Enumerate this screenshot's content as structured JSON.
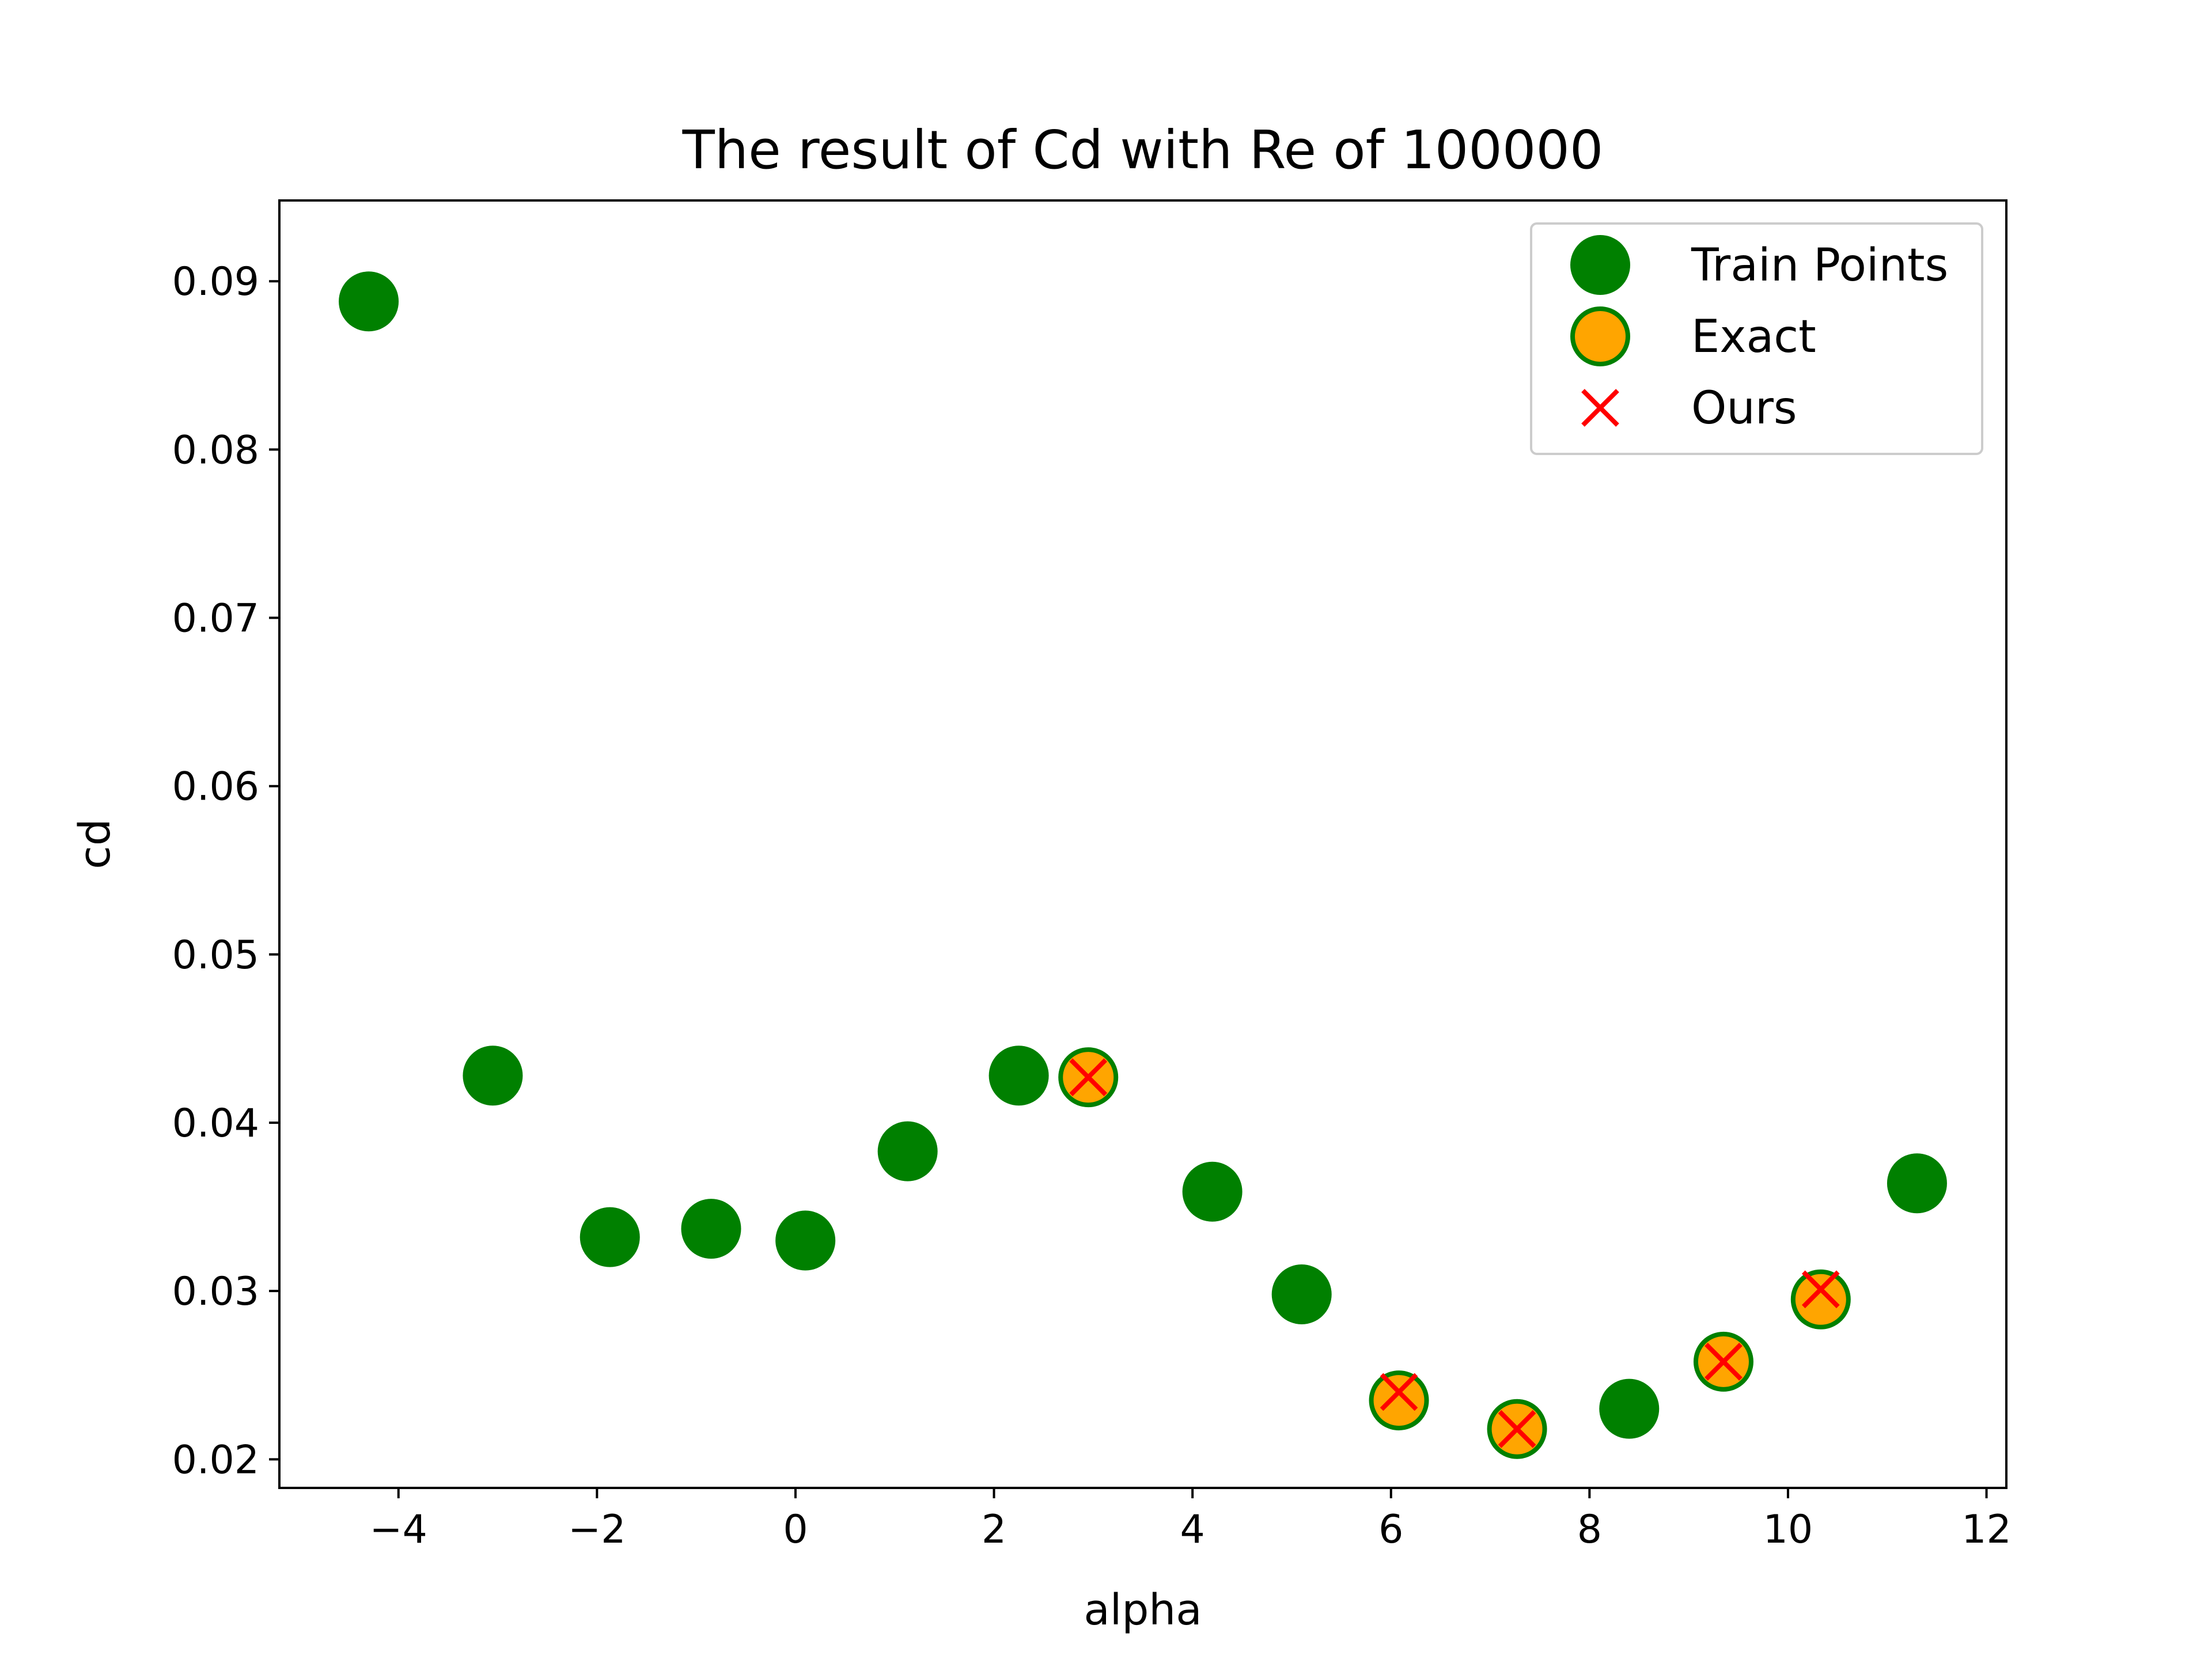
{
  "chart_data": {
    "type": "scatter",
    "title": "The result of Cd with Re of 100000",
    "xlabel": "alpha",
    "ylabel": "cd",
    "xlim": [
      -5.2,
      12.2
    ],
    "ylim": [
      0.0183,
      0.0948
    ],
    "xticks": [
      -4,
      -2,
      0,
      2,
      4,
      6,
      8,
      10,
      12
    ],
    "xtick_labels": [
      "−4",
      "−2",
      "0",
      "2",
      "4",
      "6",
      "8",
      "10",
      "12"
    ],
    "yticks": [
      0.02,
      0.03,
      0.04,
      0.05,
      0.06,
      0.07,
      0.08,
      0.09
    ],
    "ytick_labels": [
      "0.02",
      "0.03",
      "0.04",
      "0.05",
      "0.06",
      "0.07",
      "0.08",
      "0.09"
    ],
    "grid": false,
    "legend_position": "top-right",
    "series": [
      {
        "name": "Train Points",
        "marker": "circle",
        "color": "#008000",
        "x": [
          -4.3,
          -3.05,
          -1.87,
          -0.85,
          0.1,
          1.13,
          2.25,
          4.2,
          5.1,
          8.4,
          11.3
        ],
        "y": [
          0.0888,
          0.0428,
          0.0332,
          0.0337,
          0.033,
          0.0383,
          0.0428,
          0.0359,
          0.0298,
          0.023,
          0.0364
        ]
      },
      {
        "name": "Exact",
        "marker": "circle",
        "color": "#FFA500",
        "edge_color": "#008000",
        "x": [
          2.95,
          6.08,
          7.27,
          9.35,
          10.33
        ],
        "y": [
          0.0427,
          0.0235,
          0.0218,
          0.0258,
          0.0295
        ]
      },
      {
        "name": "Ours",
        "marker": "x",
        "color": "#FF0000",
        "x": [
          2.95,
          6.08,
          7.27,
          9.35,
          10.33
        ],
        "y": [
          0.0427,
          0.024,
          0.0218,
          0.0258,
          0.0301
        ]
      }
    ]
  }
}
